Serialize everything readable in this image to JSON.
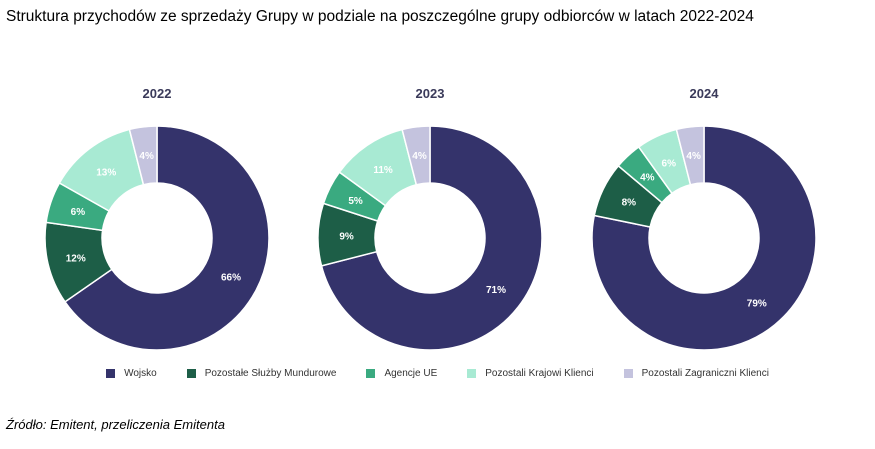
{
  "title": "Struktura przychodów ze sprzedaży Grupy w podziale na poszczególne grupy odbiorców w latach 2022-2024",
  "source": "Źródło: Emitent, przeliczenia Emitenta",
  "chart_data": {
    "type": "pie",
    "subtype": "donut",
    "categories": [
      "Wojsko",
      "Pozostałe Służby Mundurowe",
      "Agencje UE",
      "Pozostali Krajowi Klienci",
      "Pozostali Zagraniczni Klienci"
    ],
    "colors": [
      "#34336b",
      "#1d5e47",
      "#3aaa80",
      "#a8ead3",
      "#c4c3de"
    ],
    "label_colors": [
      "#ffffff",
      "#ffffff",
      "#ffffff",
      "#ffffff",
      "#ffffff"
    ],
    "legend_placement": "bottom",
    "series": [
      {
        "name": "2022",
        "values": [
          66,
          12,
          6,
          13,
          4
        ],
        "labels": [
          "66%",
          "12%",
          "6%",
          "13%",
          "4%"
        ]
      },
      {
        "name": "2023",
        "values": [
          71,
          9,
          5,
          11,
          4
        ],
        "labels": [
          "71%",
          "9%",
          "5%",
          "11%",
          "4%"
        ]
      },
      {
        "name": "2024",
        "values": [
          79,
          8,
          4,
          6,
          4
        ],
        "labels": [
          "79%",
          "8%",
          "4%",
          "6%",
          "4%"
        ]
      }
    ]
  }
}
